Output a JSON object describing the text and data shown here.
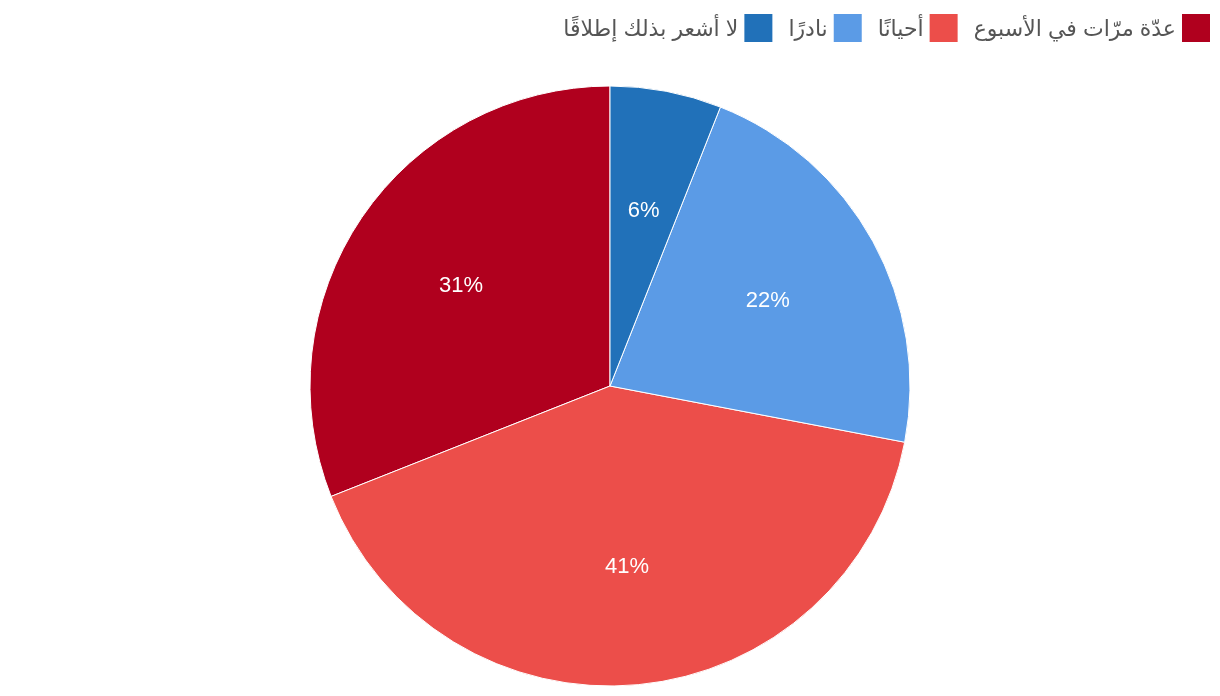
{
  "chart_data": {
    "type": "pie",
    "categories": [
      "عدّة مرّات في الأسبوع",
      "أحيانًا",
      "نادرًا",
      "لا أشعر بذلك إطلاقًا"
    ],
    "values": [
      31,
      41,
      22,
      6
    ],
    "colors": [
      "#b0001e",
      "#ec4e4a",
      "#5b9be6",
      "#2171b9"
    ],
    "value_labels": [
      "31%",
      "41%",
      "22%",
      "6%"
    ],
    "legend": "top right"
  }
}
